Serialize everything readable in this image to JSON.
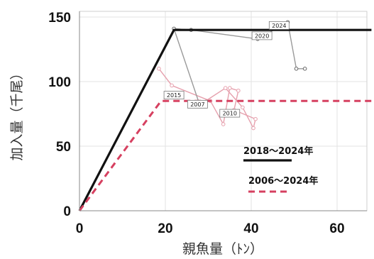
{
  "chart_data": {
    "type": "line",
    "xlabel": "親魚量（ﾄﾝ）",
    "ylabel": "加入量（千尾）",
    "xlim": [
      0,
      68
    ],
    "ylim": [
      0,
      152
    ],
    "xticks": [
      "0",
      "20",
      "40",
      "60"
    ],
    "xtick_values": [
      0,
      20,
      40,
      60
    ],
    "yticks": [
      "0",
      "50",
      "100",
      "150"
    ],
    "ytick_values": [
      0,
      50,
      100,
      150
    ],
    "grid": true,
    "legend_position": "bottom-right",
    "series": [
      {
        "name": "2018〜2024年",
        "color": "#111111",
        "style": "solid",
        "x": [
          0,
          22,
          68
        ],
        "y": [
          0,
          140,
          140
        ]
      },
      {
        "name": "2006〜2024年",
        "color": "#d64060",
        "style": "dashed",
        "x": [
          0,
          19,
          68
        ],
        "y": [
          0,
          85,
          85
        ]
      }
    ],
    "observations": {
      "color_early": "#e6a0ad",
      "color_late": "#9a9a9a",
      "points": [
        {
          "x": 18.5,
          "y": 110
        },
        {
          "x": 21.5,
          "y": 97
        },
        {
          "x": 30.5,
          "y": 85
        },
        {
          "x": 33.5,
          "y": 67
        },
        {
          "x": 35.0,
          "y": 95
        },
        {
          "x": 37.0,
          "y": 93
        },
        {
          "x": 36.0,
          "y": 78
        },
        {
          "x": 41.0,
          "y": 71
        },
        {
          "x": 40.5,
          "y": 64
        },
        {
          "x": 38.0,
          "y": 80
        },
        {
          "x": 34.0,
          "y": 95
        },
        {
          "x": 28.0,
          "y": 82
        },
        {
          "x": 22.0,
          "y": 141
        },
        {
          "x": 26.0,
          "y": 140
        },
        {
          "x": 41.5,
          "y": 133
        },
        {
          "x": 48.5,
          "y": 146
        },
        {
          "x": 50.5,
          "y": 110
        },
        {
          "x": 52.5,
          "y": 110
        }
      ]
    },
    "annotations": [
      {
        "text": "2024",
        "x": 46.5,
        "y": 143.5
      },
      {
        "text": "2020",
        "x": 42.5,
        "y": 135.5
      },
      {
        "text": "2015",
        "x": 22.0,
        "y": 89.5
      },
      {
        "text": "2007",
        "x": 27.5,
        "y": 82.5
      },
      {
        "text": "2010",
        "x": 35.0,
        "y": 75.5
      }
    ]
  }
}
